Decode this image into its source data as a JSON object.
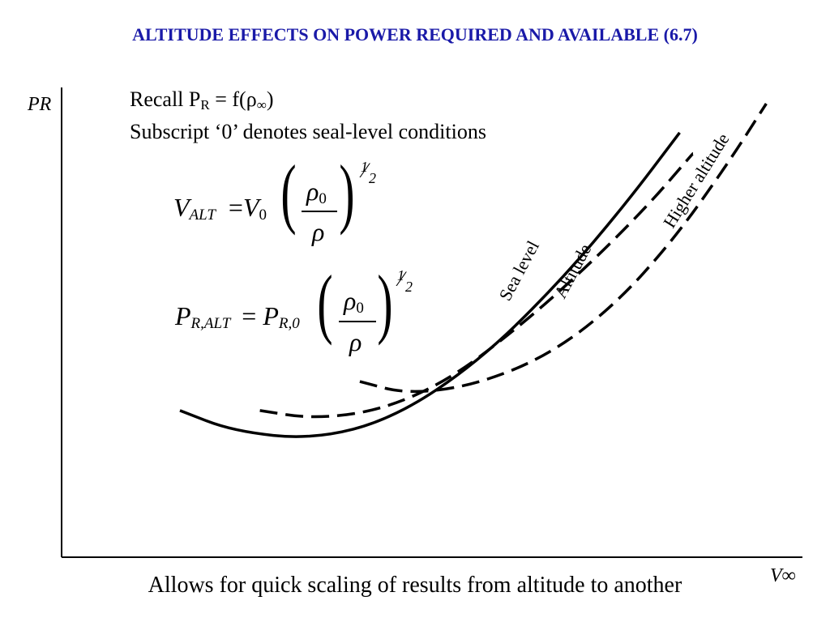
{
  "slide": {
    "title": "ALTITUDE EFFECTS ON POWER REQUIRED AND AVAILABLE (6.7)",
    "title_color": "#1a1aa8",
    "recall_prefix": "Recall P",
    "recall_sub": "R",
    "recall_suffix": " = f(ρ",
    "recall_sub2": "∞",
    "recall_close": ")",
    "subscript_note": "Subscript ‘0’ denotes seal-level conditions",
    "bottom_caption": "Allows for quick scaling of results from altitude to another"
  },
  "equations": {
    "v_alt": {
      "lhs": "V",
      "lhs_sub": "ALT",
      "eq": "=",
      "rhs": "V",
      "rhs_sub": "0",
      "num": "ρ",
      "num_sub": "0",
      "den": "ρ",
      "exp_num": "1",
      "exp_den": "2"
    },
    "p_alt": {
      "lhs": "P",
      "lhs_sub": "R,ALT",
      "eq": "=",
      "rhs": "P",
      "rhs_sub": "R,0",
      "num": "ρ",
      "num_sub": "0",
      "den": "ρ",
      "exp_num": "1",
      "exp_den": "2"
    }
  },
  "chart_data": {
    "type": "line",
    "xlabel": "V∞",
    "ylabel": "PR",
    "grid": false,
    "series": [
      {
        "name": "Sea level",
        "style": "solid",
        "x": [
          0.0,
          0.08,
          0.2,
          0.32,
          0.45,
          0.57,
          0.67,
          0.75
        ],
        "y": [
          0.26,
          0.21,
          0.19,
          0.24,
          0.38,
          0.57,
          0.76,
          0.93
        ]
      },
      {
        "name": "Altitude",
        "style": "dashed",
        "x": [
          0.12,
          0.2,
          0.3,
          0.4,
          0.5,
          0.6,
          0.7,
          0.77
        ],
        "y": [
          0.26,
          0.24,
          0.26,
          0.33,
          0.45,
          0.59,
          0.75,
          0.88
        ]
      },
      {
        "name": "Higher altitude",
        "style": "dashed",
        "x": [
          0.27,
          0.34,
          0.44,
          0.55,
          0.65,
          0.74,
          0.82,
          0.88
        ],
        "y": [
          0.33,
          0.3,
          0.32,
          0.39,
          0.51,
          0.67,
          0.85,
          1.0
        ]
      }
    ]
  }
}
